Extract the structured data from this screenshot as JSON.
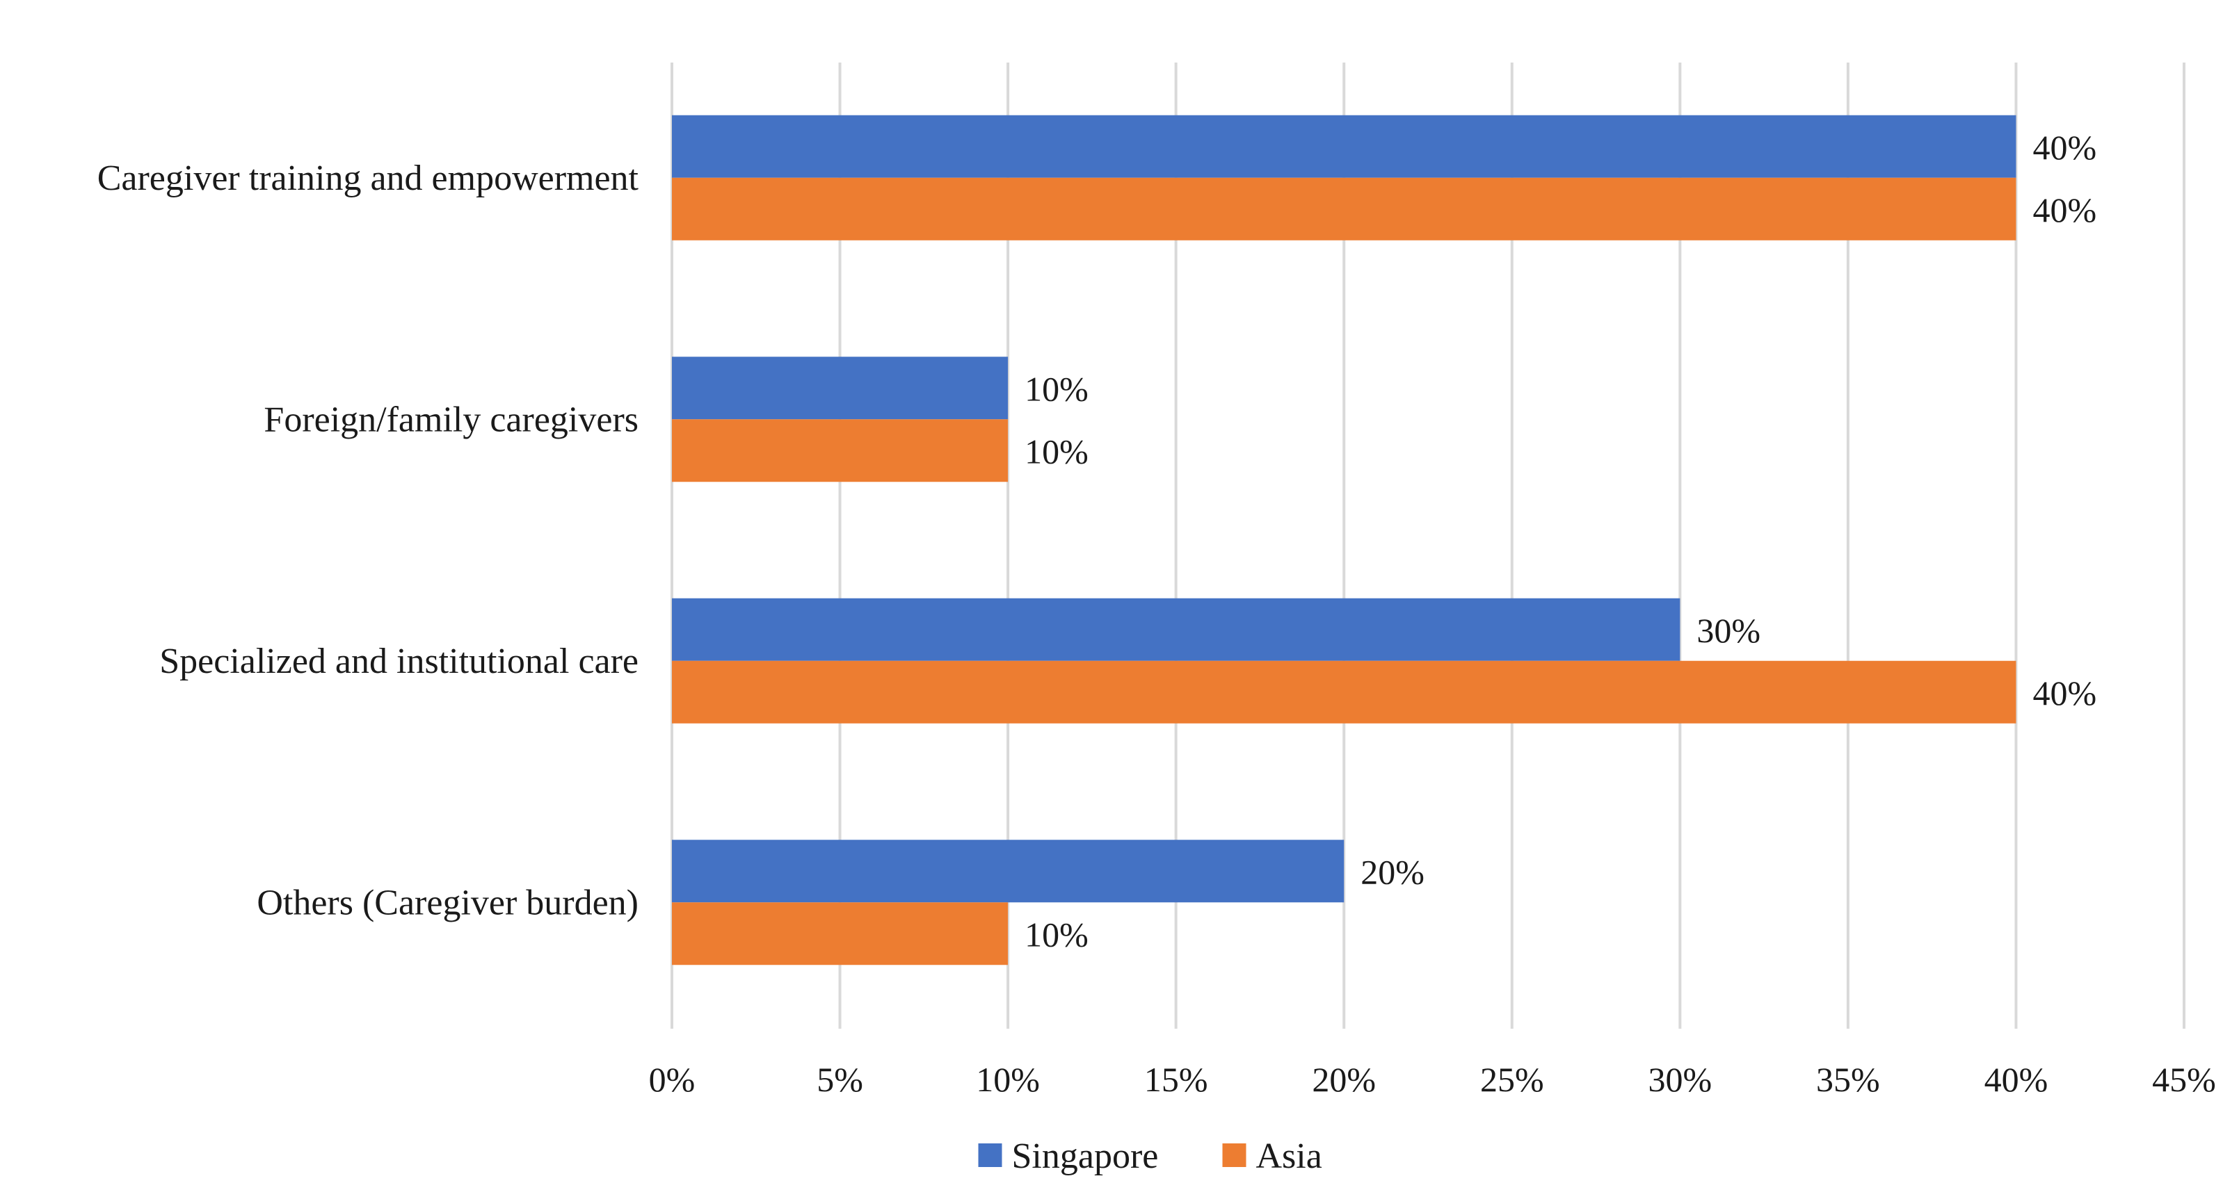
{
  "chart_data": {
    "type": "bar",
    "orientation": "horizontal",
    "title": "",
    "xlabel": "",
    "ylabel": "",
    "categories": [
      "Caregiver training and empowerment",
      "Foreign/family caregivers",
      "Specialized and institutional care",
      "Others (Caregiver burden)"
    ],
    "series": [
      {
        "name": "Singapore",
        "color": "#4472C4",
        "values": [
          40,
          10,
          30,
          20
        ],
        "labels": [
          "40%",
          "10%",
          "30%",
          "20%"
        ]
      },
      {
        "name": "Asia",
        "color": "#ED7D31",
        "values": [
          40,
          10,
          40,
          10
        ],
        "labels": [
          "40%",
          "10%",
          "40%",
          "10%"
        ]
      }
    ],
    "xlim": [
      0,
      45
    ],
    "xticks": [
      0,
      5,
      10,
      15,
      20,
      25,
      30,
      35,
      40,
      45
    ],
    "xtick_labels": [
      "0%",
      "5%",
      "10%",
      "15%",
      "20%",
      "25%",
      "30%",
      "35%",
      "40%",
      "45%"
    ],
    "grid": "vertical",
    "gridline_color": "#d9d9d9",
    "legend_position": "bottom-center"
  }
}
